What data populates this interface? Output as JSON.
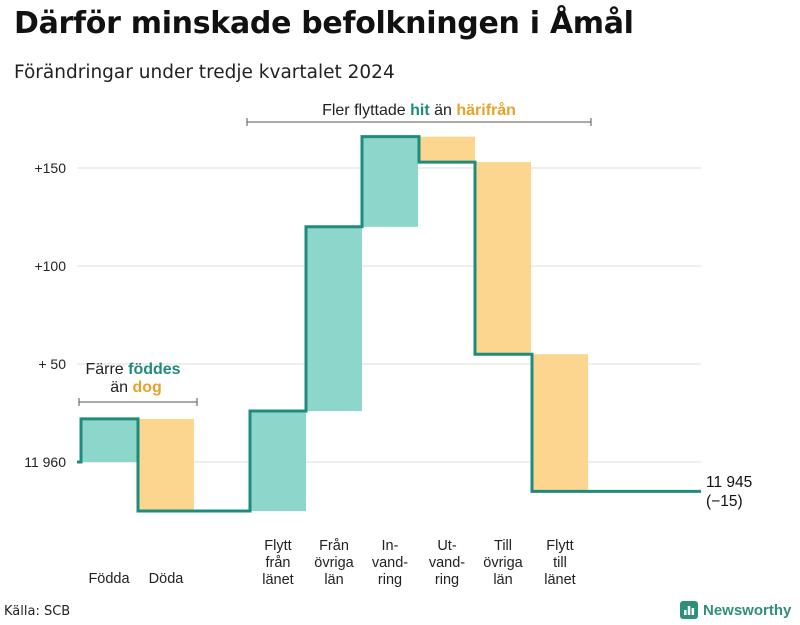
{
  "title": "Därför minskade befolkningen i Åmål",
  "subtitle": "Förändringar under tredje kvartalet 2024",
  "source": "Källa: SCB",
  "brand": {
    "name": "Newsworthy",
    "icon": "bar-chart-icon"
  },
  "colors": {
    "increase": "#8dd6cb",
    "decrease": "#fcd68f",
    "line": "#1e8c7c",
    "accent_teal": "#1e8c7c",
    "accent_orange": "#e8a12a",
    "grid": "#dddddd"
  },
  "annotations": {
    "migration": {
      "prefix": "Fler flyttade ",
      "hit": "hit",
      "middle": " än ",
      "harifran": "härifrån"
    },
    "natural": {
      "prefix": "Färre ",
      "foddes": "föddes",
      "line2_prefix": "än ",
      "dog": "dog"
    }
  },
  "end_label": {
    "line1": "11 945",
    "line2": "(−15)"
  },
  "chart_data": {
    "type": "waterfall",
    "baseline": 11960,
    "final_value": 11945,
    "net_change": -15,
    "yticks": [
      {
        "value": 150,
        "label": "+150"
      },
      {
        "value": 100,
        "label": "+100"
      },
      {
        "value": 50,
        "label": "+ 50"
      },
      {
        "value": 0,
        "label": "11 960"
      }
    ],
    "ylim": [
      -25,
      165
    ],
    "steps": [
      {
        "name": "births",
        "label": [
          "Födda"
        ],
        "change": 22,
        "kind": "increase"
      },
      {
        "name": "deaths",
        "label": [
          "Döda"
        ],
        "change": -47,
        "kind": "decrease"
      },
      {
        "name": "moved-from-county",
        "label": [
          "Flytt",
          "från",
          "länet"
        ],
        "change": 51,
        "kind": "increase"
      },
      {
        "name": "from-other-counties",
        "label": [
          "Från",
          "övriga",
          "län"
        ],
        "change": 94,
        "kind": "increase"
      },
      {
        "name": "immigration",
        "label": [
          "In-",
          "vand-",
          "ring"
        ],
        "change": 46,
        "kind": "increase"
      },
      {
        "name": "emigration",
        "label": [
          "Ut-",
          "vand-",
          "ring"
        ],
        "change": -13,
        "kind": "decrease"
      },
      {
        "name": "to-other-counties",
        "label": [
          "Till",
          "övriga",
          "län"
        ],
        "change": -98,
        "kind": "decrease"
      },
      {
        "name": "moved-to-county",
        "label": [
          "Flytt",
          "till",
          "länet"
        ],
        "change": -70,
        "kind": "decrease"
      }
    ]
  }
}
